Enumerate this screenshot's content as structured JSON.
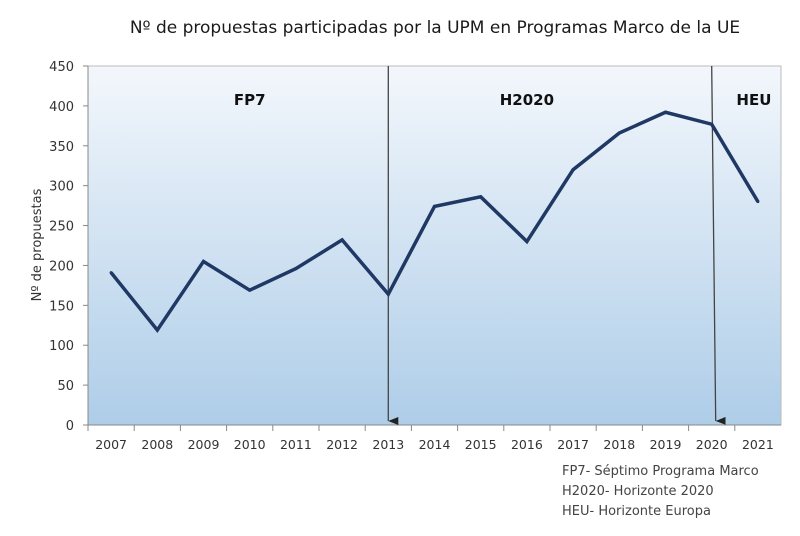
{
  "chart_data": {
    "type": "line",
    "title": "Nº de propuestas participadas por la UPM en Programas Marco de la UE",
    "xlabel": "",
    "ylabel": "Nº de propuestas",
    "ylim": [
      0,
      450
    ],
    "yticks": [
      "0",
      "50",
      "100",
      "150",
      "200",
      "250",
      "300",
      "350",
      "400",
      "450"
    ],
    "categories": [
      "2007",
      "2008",
      "2009",
      "2010",
      "2011",
      "2012",
      "2013",
      "2014",
      "2015",
      "2016",
      "2017",
      "2018",
      "2019",
      "2020",
      "2021"
    ],
    "values": [
      191,
      119,
      205,
      169,
      196,
      232,
      164,
      274,
      286,
      230,
      320,
      366,
      392,
      377,
      280
    ],
    "grid": false,
    "line_color": "#1f3864",
    "background_gradient": [
      "#f3f7fc",
      "#aecde8"
    ],
    "period_labels": [
      {
        "label": "FP7",
        "center_year": "2010"
      },
      {
        "label": "H2020",
        "center_year": "2016"
      },
      {
        "label": "HEU",
        "center_year": "2021"
      }
    ],
    "period_markers": [
      "2013",
      "2020"
    ],
    "notes": [
      "FP7- Séptimo Programa Marco",
      "H2020- Horizonte 2020",
      "HEU- Horizonte Europa"
    ]
  }
}
